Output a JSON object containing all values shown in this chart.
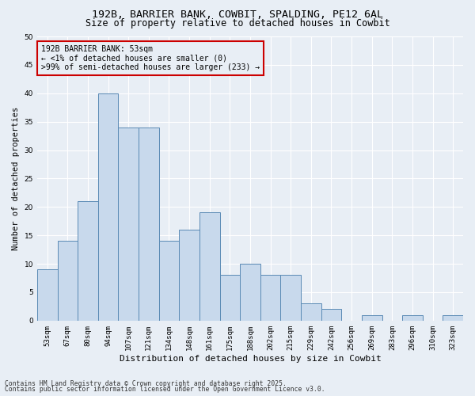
{
  "title_line1": "192B, BARRIER BANK, COWBIT, SPALDING, PE12 6AL",
  "title_line2": "Size of property relative to detached houses in Cowbit",
  "xlabel": "Distribution of detached houses by size in Cowbit",
  "ylabel": "Number of detached properties",
  "bar_labels": [
    "53sqm",
    "67sqm",
    "80sqm",
    "94sqm",
    "107sqm",
    "121sqm",
    "134sqm",
    "148sqm",
    "161sqm",
    "175sqm",
    "188sqm",
    "202sqm",
    "215sqm",
    "229sqm",
    "242sqm",
    "256sqm",
    "269sqm",
    "283sqm",
    "296sqm",
    "310sqm",
    "323sqm"
  ],
  "bar_values": [
    9,
    14,
    21,
    40,
    34,
    34,
    14,
    16,
    19,
    8,
    10,
    8,
    8,
    3,
    2,
    0,
    1,
    0,
    1,
    0,
    1
  ],
  "bar_color": "#c8d9ec",
  "bar_edge_color": "#5a8ab5",
  "background_color": "#e8eef5",
  "annotation_line1": "192B BARRIER BANK: 53sqm",
  "annotation_line2": "← <1% of detached houses are smaller (0)",
  "annotation_line3": ">99% of semi-detached houses are larger (233) →",
  "annotation_box_color": "#cc0000",
  "ylim": [
    0,
    50
  ],
  "yticks": [
    0,
    5,
    10,
    15,
    20,
    25,
    30,
    35,
    40,
    45,
    50
  ],
  "footer_line1": "Contains HM Land Registry data © Crown copyright and database right 2025.",
  "footer_line2": "Contains public sector information licensed under the Open Government Licence v3.0.",
  "grid_color": "#ffffff",
  "title_fontsize": 9.5,
  "subtitle_fontsize": 8.5,
  "axis_label_fontsize": 8,
  "tick_fontsize": 6.5,
  "annotation_fontsize": 7,
  "footer_fontsize": 5.8,
  "ylabel_fontsize": 7.5
}
